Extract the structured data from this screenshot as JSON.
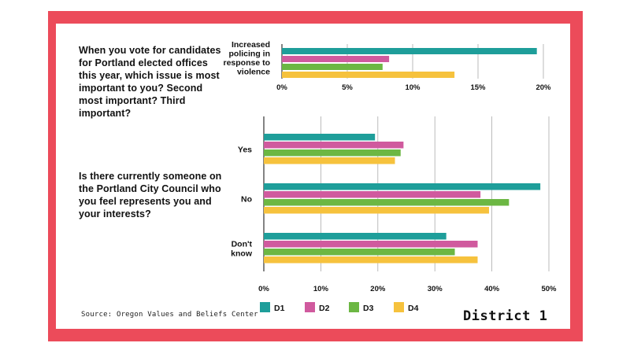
{
  "questions": {
    "q1": "When you vote for candidates for Portland elected offices this year, which issue is most important to you? Second most important? Third important?",
    "q2": "Is there currently someone on the Portland City Council who you feel represents you and your interests?"
  },
  "source": "Source: Oregon Values and Beliefs Center",
  "district": "District 1",
  "colors": {
    "frame": "#ec4b5a",
    "D1": "#1e9e9a",
    "D2": "#d05a9e",
    "D3": "#6cb743",
    "D4": "#f6c23d"
  },
  "legend": [
    "D1",
    "D2",
    "D3",
    "D4"
  ],
  "chart_data": [
    {
      "type": "bar",
      "orientation": "horizontal",
      "categories": [
        "Increased policing in response to violence"
      ],
      "category_lines": [
        [
          "Increased",
          "policing in",
          "response to",
          "violence"
        ]
      ],
      "series": [
        {
          "name": "D1",
          "values": [
            19.5
          ]
        },
        {
          "name": "D2",
          "values": [
            8.2
          ]
        },
        {
          "name": "D3",
          "values": [
            7.7
          ]
        },
        {
          "name": "D4",
          "values": [
            13.2
          ]
        }
      ],
      "xlim": [
        0,
        20
      ],
      "ticks": [
        "0%",
        "5%",
        "10%",
        "15%",
        "20%"
      ],
      "tick_values": [
        0,
        5,
        10,
        15,
        20
      ],
      "grid": true
    },
    {
      "type": "bar",
      "orientation": "horizontal",
      "categories": [
        "Yes",
        "No",
        "Don't know"
      ],
      "category_lines": [
        [
          "Yes"
        ],
        [
          "No"
        ],
        [
          "Don't",
          "know"
        ]
      ],
      "series": [
        {
          "name": "D1",
          "values": [
            19.5,
            48.5,
            32
          ]
        },
        {
          "name": "D2",
          "values": [
            24.5,
            38,
            37.5
          ]
        },
        {
          "name": "D3",
          "values": [
            24,
            43,
            33.5
          ]
        },
        {
          "name": "D4",
          "values": [
            23,
            39.5,
            37.5
          ]
        }
      ],
      "xlim": [
        0,
        50
      ],
      "ticks": [
        "0%",
        "10%",
        "20%",
        "30%",
        "40%",
        "50%"
      ],
      "tick_values": [
        0,
        10,
        20,
        30,
        40,
        50
      ],
      "grid": true
    }
  ]
}
